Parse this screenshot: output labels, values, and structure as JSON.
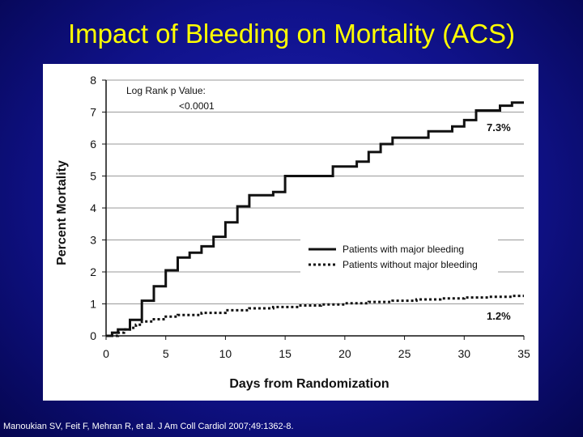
{
  "slide": {
    "title": "Impact of Bleeding on Mortality (ACS)",
    "citation": "Manoukian SV, Feit F, Mehran R, et al. J Am Coll Cardiol 2007;49:1362-8."
  },
  "chart_data": {
    "type": "line",
    "step": true,
    "xlabel": "Days from Randomization",
    "ylabel": "Percent Mortality",
    "xlim": [
      0,
      35
    ],
    "ylim": [
      0,
      8
    ],
    "xticks": [
      0,
      5,
      10,
      15,
      20,
      25,
      30,
      35
    ],
    "yticks": [
      0,
      1,
      2,
      3,
      4,
      5,
      6,
      7,
      8
    ],
    "grid": "horizontal",
    "legend_position": "center-right",
    "annotation_lines": [
      "Log Rank p Value:",
      "<0.0001"
    ],
    "series": [
      {
        "name": "Patients with major bleeding",
        "style": "solid",
        "end_label": "7.3%",
        "x": [
          0,
          0.5,
          1,
          2,
          3,
          4,
          5,
          6,
          7,
          8,
          9,
          10,
          11,
          12,
          14,
          15,
          16,
          19,
          21,
          22,
          23,
          24,
          25,
          27,
          28,
          29,
          30,
          31,
          32,
          33,
          34,
          35
        ],
        "y": [
          0,
          0.1,
          0.2,
          0.5,
          1.1,
          1.55,
          2.05,
          2.45,
          2.6,
          2.8,
          3.1,
          3.55,
          4.05,
          4.4,
          4.5,
          5.0,
          5.0,
          5.3,
          5.45,
          5.75,
          6.0,
          6.2,
          6.2,
          6.4,
          6.4,
          6.55,
          6.75,
          7.05,
          7.05,
          7.2,
          7.3,
          7.3
        ]
      },
      {
        "name": "Patients without major bleeding",
        "style": "dotted",
        "end_label": "1.2%",
        "x": [
          0,
          1,
          1.5,
          2,
          2.5,
          3,
          4,
          5,
          6,
          8,
          10,
          12,
          14,
          16,
          18,
          20,
          22,
          24,
          26,
          28,
          30,
          32,
          34,
          35
        ],
        "y": [
          0,
          0.1,
          0.2,
          0.25,
          0.35,
          0.45,
          0.52,
          0.6,
          0.65,
          0.72,
          0.8,
          0.86,
          0.9,
          0.95,
          0.98,
          1.02,
          1.06,
          1.1,
          1.14,
          1.17,
          1.2,
          1.22,
          1.25,
          1.25
        ]
      }
    ]
  }
}
